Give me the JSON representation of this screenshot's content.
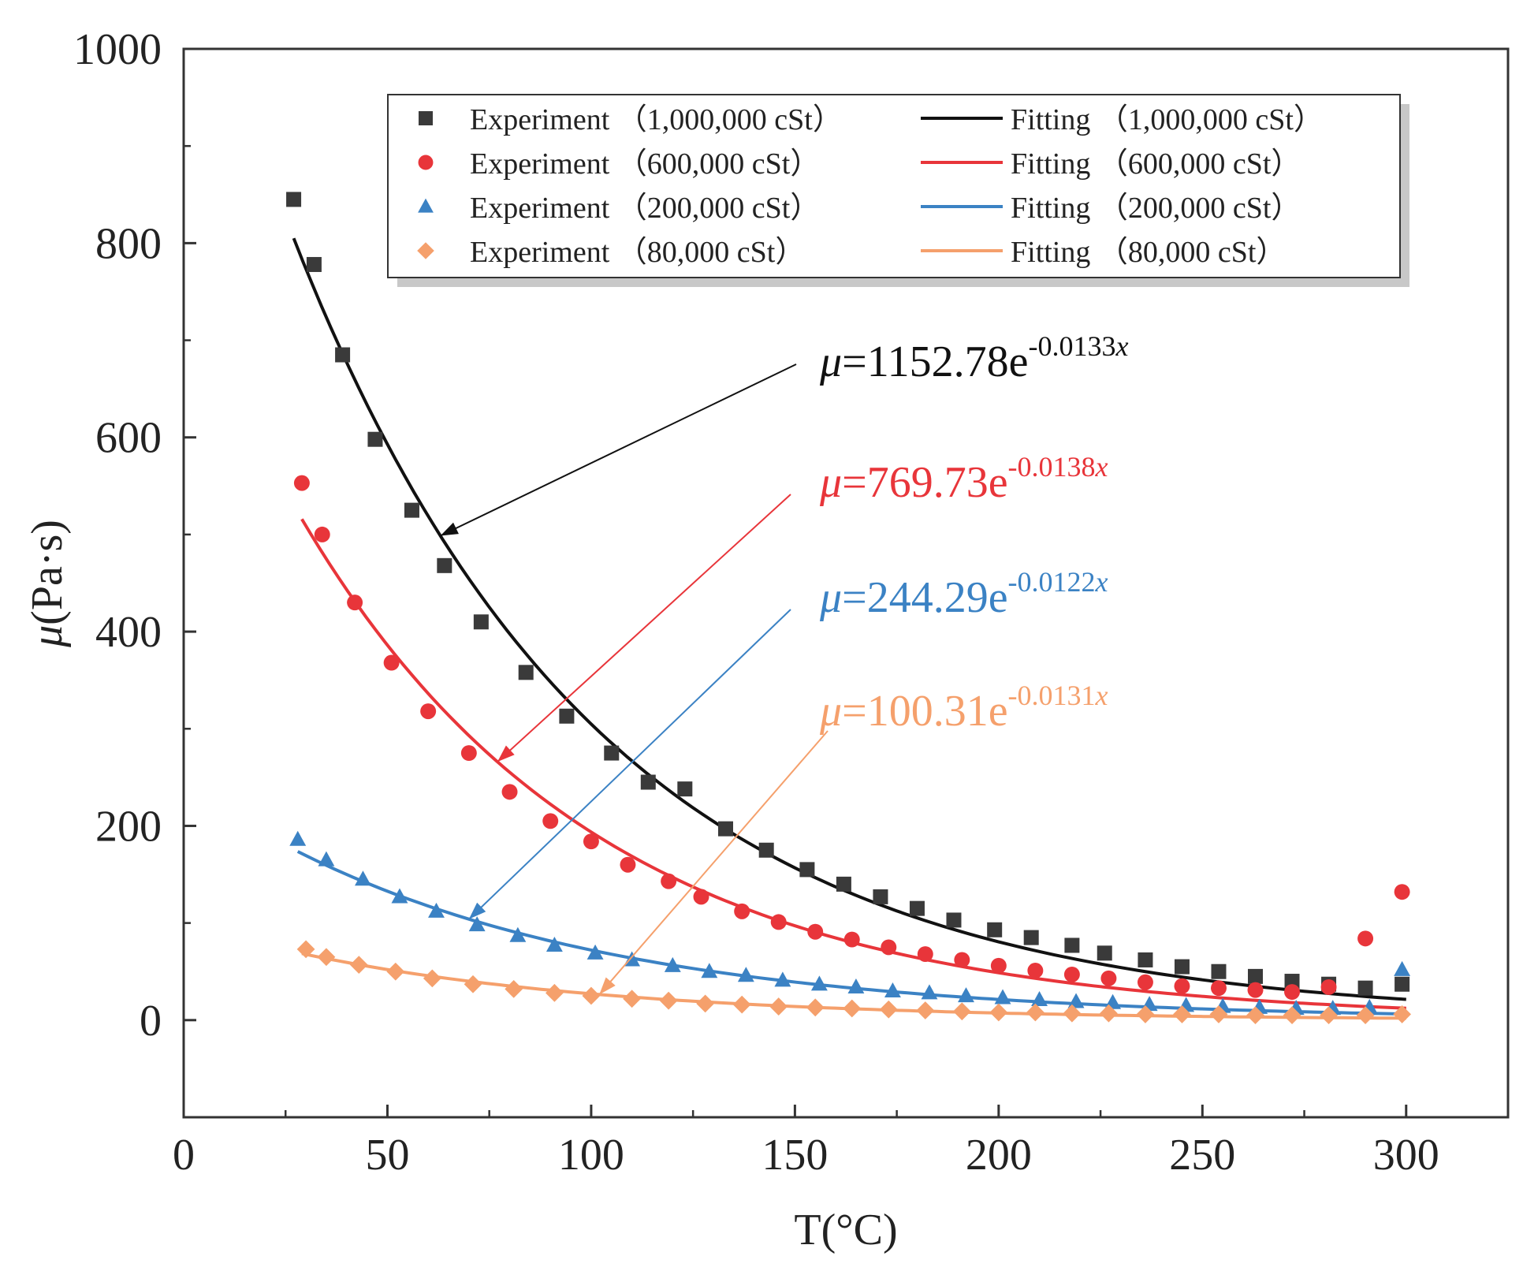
{
  "chart_data": {
    "type": "scatter",
    "xlabel": "T(°C)",
    "ylabel_italic": "μ",
    "ylabel_rest": "(Pa·s)",
    "xlim": [
      0,
      325
    ],
    "ylim": [
      -100,
      1000
    ],
    "xticks": [
      0,
      50,
      100,
      150,
      200,
      250,
      300
    ],
    "yticks": [
      0,
      200,
      400,
      600,
      800,
      1000
    ],
    "legend_position": "top-right",
    "series": [
      {
        "name": "1,000,000 cSt",
        "color": "#3a3a3a",
        "marker": "square",
        "legend_experiment": "Experiment （1,000,000 cSt）",
        "legend_fitting": "Fitting （1,000,000 cSt）",
        "fit": {
          "a": 1152.78,
          "b": -0.0133,
          "x_range": [
            27,
            300
          ]
        },
        "equation": {
          "mu": "μ",
          "eq": "=1152.78e",
          "exp": "-0.0133",
          "var": "x"
        },
        "arrow_target_x": 63,
        "points": [
          [
            27,
            845
          ],
          [
            32,
            778
          ],
          [
            39,
            685
          ],
          [
            47,
            598
          ],
          [
            56,
            525
          ],
          [
            64,
            468
          ],
          [
            73,
            410
          ],
          [
            84,
            358
          ],
          [
            94,
            313
          ],
          [
            105,
            275
          ],
          [
            114,
            245
          ],
          [
            123,
            238
          ],
          [
            133,
            197
          ],
          [
            143,
            175
          ],
          [
            153,
            155
          ],
          [
            162,
            140
          ],
          [
            171,
            127
          ],
          [
            180,
            115
          ],
          [
            189,
            103
          ],
          [
            199,
            93
          ],
          [
            208,
            85
          ],
          [
            218,
            77
          ],
          [
            226,
            69
          ],
          [
            236,
            62
          ],
          [
            245,
            55
          ],
          [
            254,
            50
          ],
          [
            263,
            45
          ],
          [
            272,
            40
          ],
          [
            281,
            37
          ],
          [
            290,
            33
          ],
          [
            299,
            37
          ]
        ]
      },
      {
        "name": "600,000 cSt",
        "color": "#e8353a",
        "marker": "circle",
        "legend_experiment": "Experiment （600,000 cSt）",
        "legend_fitting": "Fitting （600,000 cSt）",
        "fit": {
          "a": 769.73,
          "b": -0.0138,
          "x_range": [
            29,
            300
          ]
        },
        "equation": {
          "mu": "μ",
          "eq": "=769.73e",
          "exp": "-0.0138",
          "var": "x"
        },
        "arrow_target_x": 77,
        "points": [
          [
            29,
            553
          ],
          [
            34,
            500
          ],
          [
            42,
            430
          ],
          [
            51,
            368
          ],
          [
            60,
            318
          ],
          [
            70,
            275
          ],
          [
            80,
            235
          ],
          [
            90,
            205
          ],
          [
            100,
            184
          ],
          [
            109,
            160
          ],
          [
            119,
            143
          ],
          [
            127,
            127
          ],
          [
            137,
            112
          ],
          [
            146,
            101
          ],
          [
            155,
            91
          ],
          [
            164,
            83
          ],
          [
            173,
            75
          ],
          [
            182,
            68
          ],
          [
            191,
            62
          ],
          [
            200,
            56
          ],
          [
            209,
            51
          ],
          [
            218,
            47
          ],
          [
            227,
            43
          ],
          [
            236,
            39
          ],
          [
            245,
            35
          ],
          [
            254,
            33
          ],
          [
            263,
            31
          ],
          [
            272,
            29
          ],
          [
            281,
            34
          ],
          [
            290,
            84
          ],
          [
            299,
            132
          ]
        ]
      },
      {
        "name": "200,000 cSt",
        "color": "#3b82c4",
        "marker": "triangle",
        "legend_experiment": "Experiment （200,000 cSt）",
        "legend_fitting": "Fitting （200,000 cSt）",
        "fit": {
          "a": 244.29,
          "b": -0.0122,
          "x_range": [
            28,
            300
          ]
        },
        "equation": {
          "mu": "μ",
          "eq": "=244.29e",
          "exp": "-0.0122",
          "var": "x"
        },
        "arrow_target_x": 70,
        "points": [
          [
            28,
            186
          ],
          [
            35,
            165
          ],
          [
            44,
            145
          ],
          [
            53,
            127
          ],
          [
            62,
            112
          ],
          [
            72,
            98
          ],
          [
            82,
            87
          ],
          [
            91,
            77
          ],
          [
            101,
            69
          ],
          [
            110,
            62
          ],
          [
            120,
            56
          ],
          [
            129,
            50
          ],
          [
            138,
            46
          ],
          [
            147,
            41
          ],
          [
            156,
            37
          ],
          [
            165,
            34
          ],
          [
            174,
            30
          ],
          [
            183,
            28
          ],
          [
            192,
            25
          ],
          [
            201,
            23
          ],
          [
            210,
            21
          ],
          [
            219,
            19
          ],
          [
            228,
            18
          ],
          [
            237,
            16
          ],
          [
            246,
            15
          ],
          [
            255,
            14
          ],
          [
            264,
            13
          ],
          [
            273,
            12
          ],
          [
            282,
            12
          ],
          [
            291,
            13
          ],
          [
            299,
            52
          ]
        ]
      },
      {
        "name": "80,000 cSt",
        "color": "#f5a06c",
        "marker": "diamond",
        "legend_experiment": "Experiment （80,000 cSt）",
        "legend_fitting": "Fitting （80,000 cSt）",
        "fit": {
          "a": 100.31,
          "b": -0.0131,
          "x_range": [
            29,
            300
          ]
        },
        "equation": {
          "mu": "μ",
          "eq": "=100.31e",
          "exp": "-0.0131",
          "var": "x"
        },
        "arrow_target_x": 102,
        "points": [
          [
            30,
            73
          ],
          [
            35,
            65
          ],
          [
            43,
            57
          ],
          [
            52,
            50
          ],
          [
            61,
            43
          ],
          [
            71,
            37
          ],
          [
            81,
            32
          ],
          [
            91,
            28
          ],
          [
            100,
            25
          ],
          [
            110,
            22
          ],
          [
            119,
            20
          ],
          [
            128,
            17
          ],
          [
            137,
            16
          ],
          [
            146,
            14
          ],
          [
            155,
            13
          ],
          [
            164,
            12
          ],
          [
            173,
            11
          ],
          [
            182,
            10
          ],
          [
            191,
            9
          ],
          [
            200,
            8
          ],
          [
            209,
            8
          ],
          [
            218,
            7
          ],
          [
            227,
            7
          ],
          [
            236,
            6
          ],
          [
            245,
            6
          ],
          [
            254,
            6
          ],
          [
            263,
            5
          ],
          [
            272,
            5
          ],
          [
            281,
            5
          ],
          [
            290,
            5
          ],
          [
            299,
            6
          ]
        ]
      }
    ]
  }
}
